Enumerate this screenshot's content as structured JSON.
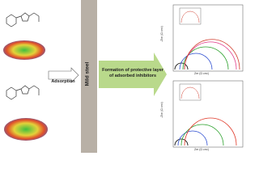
{
  "labels": {
    "adsorption": "Adsorption",
    "steel": "Mild steel",
    "formation": "Formation of protective layer of adsorbed inhibitors"
  },
  "plots": [
    {
      "x_label": "Zre (Ω cm²)",
      "y_label": "-Zim (Ω cm²)"
    },
    {
      "x_label": "Zre (Ω cm²)",
      "y_label": "-Zim (Ω cm²)"
    }
  ]
}
